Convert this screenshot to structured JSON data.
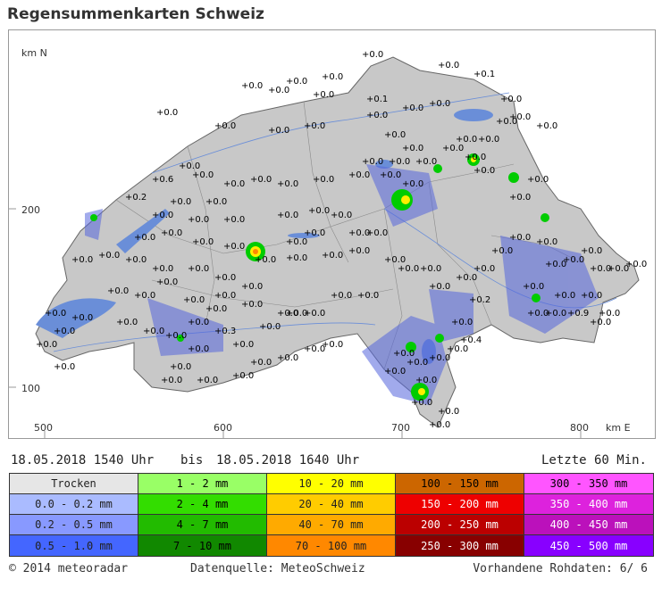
{
  "title": "Regensummenkarten Schweiz",
  "map": {
    "axis_labels": [
      "km N",
      "200",
      "100",
      "500",
      "600",
      "700",
      "800",
      "km E"
    ],
    "value_label": "+0.0",
    "special_values": [
      "+0.1",
      "+0.6",
      "+0.2",
      "+0.3",
      "+0.9",
      "+0.4"
    ],
    "station_count": 140,
    "colors": {
      "water": "#6a8ed8",
      "rain_light": "#8899ee",
      "rain_medium": "#5566dd",
      "rain_heavy": "#3344cc",
      "green": "#00cc00",
      "yellow": "#ffee00",
      "orange": "#ff8800"
    }
  },
  "time": {
    "from": "18.05.2018 1540 Uhr",
    "bis": "bis",
    "to": "18.05.2018 1640 Uhr",
    "window": "Letzte 60 Min."
  },
  "legend": [
    {
      "label": "Trocken",
      "color": "#e6e6e6"
    },
    {
      "label": "1 - 2 mm",
      "color": "#99ff66"
    },
    {
      "label": "10 - 20 mm",
      "color": "#ffff00"
    },
    {
      "label": "100 - 150 mm",
      "color": "#cc6600"
    },
    {
      "label": "300 - 350 mm",
      "color": "#ff55ff"
    },
    {
      "label": "0.0 - 0.2 mm",
      "color": "#aabbff"
    },
    {
      "label": "2 - 4 mm",
      "color": "#33dd00"
    },
    {
      "label": "20 - 40 mm",
      "color": "#ffcc00"
    },
    {
      "label": "150 - 200 mm",
      "color": "#ee0000"
    },
    {
      "label": "350 - 400 mm",
      "color": "#dd22dd"
    },
    {
      "label": "0.2 - 0.5 mm",
      "color": "#8899ff"
    },
    {
      "label": "4 - 7 mm",
      "color": "#22bb00"
    },
    {
      "label": "40 - 70 mm",
      "color": "#ffaa00"
    },
    {
      "label": "200 - 250 mm",
      "color": "#bb0000"
    },
    {
      "label": "400 - 450 mm",
      "color": "#bb11bb"
    },
    {
      "label": "0.5 - 1.0 mm",
      "color": "#4466ff"
    },
    {
      "label": "7 - 10 mm",
      "color": "#118800"
    },
    {
      "label": "70 - 100 mm",
      "color": "#ff8800"
    },
    {
      "label": "250 - 300 mm",
      "color": "#880000"
    },
    {
      "label": "450 - 500 mm",
      "color": "#8800ff"
    }
  ],
  "footer": {
    "copyright": "© 2014 meteoradar",
    "source": "Datenquelle: MeteoSchweiz",
    "rawdata": "Vorhandene Rohdaten:  6/  6"
  }
}
